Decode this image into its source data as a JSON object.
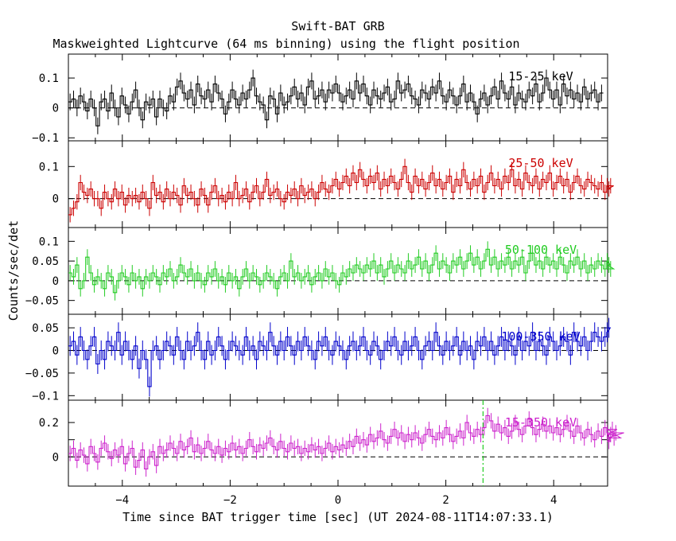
{
  "header": {
    "title": "Swift-BAT GRB",
    "subtitle": "Maskweighted Lightcurve (64 ms binning) using the flight position"
  },
  "axes": {
    "xlabel": "Time since BAT trigger time [sec] (UT 2024-08-11T14:07:33.1)",
    "ylabel": "Counts/sec/det"
  },
  "chart_data": [
    {
      "type": "line",
      "step": true,
      "band": "15-25 keV",
      "color": "#000000",
      "xlim": [
        -5,
        5
      ],
      "ylim": [
        -0.11,
        0.18
      ],
      "yticks": [
        -0.1,
        0,
        0.1
      ],
      "yticklabels": [
        "−0.1",
        "0",
        "0.1"
      ],
      "xticks": [
        -4,
        -2,
        0,
        2,
        4
      ],
      "xticklabels": [
        "−4",
        "−2",
        "0",
        "2",
        "4"
      ],
      "x_start": -5,
      "bin_width": 0.064,
      "values": [
        0.02,
        0.03,
        0.0,
        0.04,
        0.02,
        -0.01,
        0.03,
        0.0,
        -0.06,
        0.02,
        0.03,
        -0.01,
        0.05,
        0.0,
        -0.03,
        0.04,
        0.01,
        -0.02,
        0.02,
        0.06,
        0.0,
        -0.04,
        0.02,
        0.01,
        0.03,
        -0.03,
        0.03,
        0.0,
        -0.01,
        0.04,
        0.02,
        0.07,
        0.09,
        0.05,
        0.03,
        0.06,
        0.01,
        0.08,
        0.04,
        0.03,
        0.06,
        0.02,
        0.08,
        0.05,
        0.03,
        -0.02,
        0.02,
        0.06,
        0.03,
        0.01,
        0.05,
        0.03,
        0.06,
        0.1,
        0.04,
        0.02,
        0.01,
        -0.04,
        0.04,
        0.03,
        -0.02,
        0.05,
        0.01,
        0.02,
        0.04,
        0.07,
        0.03,
        0.05,
        0.01,
        0.07,
        0.09,
        0.03,
        0.04,
        0.06,
        0.02,
        0.06,
        0.05,
        0.08,
        0.05,
        0.02,
        0.04,
        0.06,
        0.03,
        0.09,
        0.05,
        0.08,
        0.04,
        0.01,
        0.06,
        0.04,
        0.03,
        0.05,
        0.07,
        0.02,
        0.03,
        0.09,
        0.05,
        0.06,
        0.08,
        0.04,
        0.03,
        0.01,
        0.06,
        0.05,
        0.03,
        0.07,
        0.05,
        0.09,
        0.04,
        0.02,
        0.06,
        0.04,
        0.01,
        0.04,
        0.08,
        0.02,
        0.05,
        0.02,
        -0.02,
        0.03,
        0.05,
        0.01,
        0.04,
        0.07,
        0.03,
        0.09,
        0.05,
        0.03,
        0.07,
        0.01,
        0.05,
        0.03,
        0.02,
        0.06,
        0.04,
        0.08,
        0.02,
        0.05,
        0.1,
        0.06,
        0.03,
        0.06,
        0.01,
        0.08,
        0.04,
        0.06,
        0.03,
        0.05,
        0.02,
        0.07,
        0.03,
        0.05,
        0.06,
        0.02,
        0.05
      ],
      "errors": 0.028
    },
    {
      "type": "line",
      "step": true,
      "band": "25-50 keV",
      "color": "#cc0000",
      "xlim": [
        -5,
        5
      ],
      "ylim": [
        -0.09,
        0.18
      ],
      "yticks": [
        0,
        0.1
      ],
      "yticklabels": [
        "0",
        "0.1"
      ],
      "xticks": [
        -4,
        -2,
        0,
        2,
        4
      ],
      "xticklabels": [
        "−4",
        "−2",
        "0",
        "2",
        "4"
      ],
      "x_start": -5,
      "bin_width": 0.064,
      "values": [
        -0.05,
        -0.03,
        -0.01,
        0.05,
        0.02,
        0.01,
        0.03,
        0.0,
        0.0,
        -0.03,
        0.02,
        0.0,
        -0.01,
        0.03,
        0.0,
        0.02,
        -0.02,
        0.01,
        0.0,
        0.01,
        -0.01,
        0.02,
        0.0,
        -0.03,
        0.05,
        0.01,
        0.02,
        -0.01,
        0.03,
        0.0,
        0.02,
        0.01,
        -0.02,
        0.04,
        0.01,
        0.02,
        0.0,
        -0.02,
        0.03,
        0.01,
        -0.02,
        0.02,
        0.04,
        0.0,
        0.01,
        -0.01,
        0.02,
        0.0,
        0.05,
        0.0,
        0.01,
        0.03,
        -0.01,
        0.02,
        0.04,
        0.0,
        0.02,
        0.06,
        0.01,
        0.02,
        0.03,
        0.0,
        -0.01,
        0.02,
        0.01,
        0.03,
        0.0,
        0.04,
        0.01,
        0.02,
        0.03,
        0.0,
        0.02,
        0.05,
        0.03,
        0.02,
        0.04,
        0.06,
        0.03,
        0.05,
        0.07,
        0.04,
        0.08,
        0.05,
        0.09,
        0.06,
        0.04,
        0.07,
        0.05,
        0.08,
        0.03,
        0.06,
        0.04,
        0.07,
        0.05,
        0.03,
        0.06,
        0.1,
        0.05,
        0.02,
        0.07,
        0.04,
        0.06,
        0.03,
        0.05,
        0.08,
        0.04,
        0.06,
        0.03,
        0.05,
        0.07,
        0.02,
        0.06,
        0.04,
        0.09,
        0.05,
        0.03,
        0.06,
        0.04,
        0.07,
        0.02,
        0.05,
        0.08,
        0.04,
        0.06,
        0.03,
        0.07,
        0.05,
        0.09,
        0.04,
        0.06,
        0.03,
        0.08,
        0.05,
        0.04,
        0.07,
        0.03,
        0.06,
        0.05,
        0.08,
        0.03,
        0.05,
        0.07,
        0.04,
        0.06,
        0.02,
        0.05,
        0.07,
        0.04,
        0.03,
        0.06,
        0.05,
        0.04,
        0.03,
        0.05,
        0.02,
        0.04,
        0.03,
        0.04
      ],
      "errors": 0.024
    },
    {
      "type": "line",
      "step": true,
      "band": "50-100 keV",
      "color": "#22cc22",
      "xlim": [
        -5,
        5
      ],
      "ylim": [
        -0.085,
        0.135
      ],
      "yticks": [
        -0.05,
        0,
        0.05,
        0.1
      ],
      "yticklabels": [
        "−0.05",
        "0",
        "0.05",
        "0.1"
      ],
      "xticks": [
        -4,
        -2,
        0,
        2,
        4
      ],
      "xticklabels": [
        "−4",
        "−2",
        "0",
        "2",
        "4"
      ],
      "x_start": -5,
      "bin_width": 0.064,
      "values": [
        0.02,
        0.01,
        0.04,
        -0.02,
        0.0,
        0.06,
        0.02,
        -0.01,
        0.01,
        0.0,
        -0.02,
        0.02,
        0.01,
        -0.03,
        0.0,
        0.02,
        0.01,
        -0.01,
        0.02,
        0.0,
        0.01,
        -0.02,
        0.01,
        0.0,
        0.02,
        0.01,
        -0.01,
        0.02,
        0.01,
        0.03,
        0.0,
        0.01,
        0.04,
        0.02,
        0.01,
        0.03,
        0.0,
        0.02,
        0.0,
        -0.01,
        0.02,
        0.01,
        0.03,
        0.0,
        0.01,
        -0.01,
        0.02,
        0.0,
        0.01,
        -0.02,
        0.01,
        0.03,
        0.0,
        0.02,
        0.01,
        -0.01,
        0.0,
        0.02,
        0.01,
        0.0,
        -0.02,
        0.01,
        0.02,
        0.0,
        0.05,
        0.01,
        0.02,
        0.0,
        0.01,
        0.02,
        -0.01,
        0.01,
        0.02,
        0.0,
        0.03,
        0.01,
        0.02,
        0.0,
        -0.01,
        0.02,
        0.01,
        0.03,
        0.02,
        0.04,
        0.03,
        0.02,
        0.04,
        0.03,
        0.05,
        0.02,
        0.04,
        0.01,
        0.03,
        0.05,
        0.02,
        0.04,
        0.03,
        0.02,
        0.05,
        0.03,
        0.04,
        0.06,
        0.03,
        0.05,
        0.02,
        0.04,
        0.07,
        0.03,
        0.05,
        0.04,
        0.02,
        0.05,
        0.04,
        0.06,
        0.03,
        0.05,
        0.07,
        0.04,
        0.06,
        0.03,
        0.05,
        0.08,
        0.04,
        0.06,
        0.03,
        0.05,
        0.04,
        0.06,
        0.03,
        0.05,
        0.04,
        0.06,
        0.02,
        0.05,
        0.07,
        0.04,
        0.05,
        0.03,
        0.06,
        0.04,
        0.05,
        0.03,
        0.06,
        0.04,
        0.02,
        0.05,
        0.04,
        0.06,
        0.03,
        0.05,
        0.02,
        0.04,
        0.03,
        0.05,
        0.04,
        0.03,
        0.05,
        0.04,
        0.03
      ],
      "errors": 0.02
    },
    {
      "type": "line",
      "step": true,
      "band": "100-350 keV",
      "color": "#0000cc",
      "xlim": [
        -5,
        5
      ],
      "ylim": [
        -0.11,
        0.08
      ],
      "yticks": [
        -0.1,
        -0.05,
        0,
        0.05
      ],
      "yticklabels": [
        "−0.1",
        "−0.05",
        "0",
        "0.05"
      ],
      "xticks": [
        -4,
        -2,
        0,
        2,
        4
      ],
      "xticklabels": [
        "−4",
        "−2",
        "0",
        "2",
        "4"
      ],
      "x_start": -5,
      "bin_width": 0.064,
      "values": [
        0.01,
        0.02,
        -0.01,
        0.03,
        0.0,
        -0.02,
        0.01,
        0.03,
        -0.03,
        0.0,
        -0.02,
        0.02,
        0.01,
        0.0,
        0.04,
        -0.01,
        0.02,
        0.0,
        -0.02,
        0.01,
        -0.04,
        0.0,
        -0.02,
        -0.08,
        0.0,
        0.01,
        -0.02,
        0.0,
        0.02,
        0.01,
        -0.01,
        0.03,
        0.0,
        -0.02,
        0.02,
        0.0,
        0.01,
        0.04,
        0.0,
        -0.02,
        0.02,
        -0.01,
        0.0,
        0.03,
        0.01,
        -0.02,
        0.0,
        0.02,
        0.01,
        0.0,
        -0.01,
        0.03,
        0.0,
        0.01,
        -0.02,
        0.02,
        0.01,
        0.0,
        0.04,
        0.01,
        -0.01,
        0.02,
        0.0,
        0.03,
        0.01,
        -0.01,
        0.02,
        0.0,
        0.03,
        0.01,
        0.0,
        -0.02,
        0.02,
        0.01,
        0.03,
        0.0,
        -0.01,
        0.02,
        0.01,
        0.0,
        -0.02,
        0.01,
        0.02,
        0.0,
        0.01,
        0.03,
        0.0,
        -0.01,
        0.02,
        0.01,
        -0.02,
        0.0,
        0.02,
        0.01,
        0.03,
        0.0,
        -0.01,
        0.02,
        0.0,
        0.01,
        0.03,
        0.0,
        -0.02,
        0.01,
        0.02,
        0.0,
        0.04,
        0.01,
        -0.01,
        0.02,
        0.0,
        0.01,
        0.03,
        -0.01,
        0.02,
        0.0,
        0.01,
        -0.02,
        0.02,
        0.01,
        0.03,
        0.0,
        0.02,
        -0.01,
        0.01,
        0.03,
        0.0,
        0.02,
        0.01,
        -0.01,
        0.03,
        0.0,
        0.02,
        0.01,
        0.04,
        0.0,
        0.02,
        0.01,
        -0.01,
        0.03,
        0.02,
        0.0,
        0.01,
        0.03,
        0.02,
        -0.01,
        0.04,
        0.02,
        0.01,
        0.03,
        0.0,
        0.02,
        0.04,
        0.03,
        0.02,
        0.03,
        0.04,
        0.05
      ],
      "errors": 0.022
    },
    {
      "type": "line",
      "step": true,
      "band": "15-350 keV",
      "color": "#cc22cc",
      "xlim": [
        -5,
        5
      ],
      "ylim": [
        -0.17,
        0.33
      ],
      "yticks": [
        0,
        0.1,
        0.2
      ],
      "yticklabels": [
        "0",
        "",
        "0.2"
      ],
      "xticks": [
        -4,
        -2,
        0,
        2,
        4
      ],
      "xticklabels": [
        "−4",
        "−2",
        "0",
        "2",
        "4"
      ],
      "x_start": -5,
      "bin_width": 0.064,
      "values": [
        0.02,
        0.05,
        -0.02,
        0.04,
        0.01,
        -0.04,
        0.06,
        0.02,
        -0.03,
        0.05,
        0.08,
        0.03,
        -0.01,
        0.04,
        0.01,
        0.06,
        -0.04,
        0.02,
        0.05,
        -0.06,
        -0.02,
        0.04,
        -0.07,
        0.0,
        0.03,
        -0.05,
        0.06,
        0.02,
        0.04,
        0.08,
        0.05,
        0.02,
        0.09,
        0.04,
        0.06,
        0.11,
        0.03,
        0.07,
        0.02,
        0.05,
        0.09,
        0.04,
        0.02,
        0.06,
        0.01,
        0.05,
        0.03,
        0.08,
        0.04,
        0.06,
        0.02,
        0.05,
        0.1,
        0.06,
        0.03,
        0.07,
        0.05,
        0.08,
        0.11,
        0.06,
        0.04,
        0.09,
        0.05,
        0.03,
        0.08,
        0.05,
        0.06,
        0.02,
        0.05,
        0.03,
        0.07,
        0.04,
        0.06,
        0.02,
        0.05,
        0.08,
        0.03,
        0.06,
        0.04,
        0.07,
        0.05,
        0.09,
        0.06,
        0.12,
        0.08,
        0.1,
        0.07,
        0.13,
        0.09,
        0.11,
        0.15,
        0.1,
        0.08,
        0.12,
        0.16,
        0.11,
        0.14,
        0.09,
        0.13,
        0.1,
        0.14,
        0.11,
        0.08,
        0.13,
        0.16,
        0.12,
        0.1,
        0.14,
        0.11,
        0.17,
        0.13,
        0.09,
        0.12,
        0.15,
        0.11,
        0.2,
        0.14,
        0.12,
        0.16,
        0.13,
        0.17,
        0.24,
        0.21,
        0.15,
        0.19,
        0.14,
        0.17,
        0.12,
        0.15,
        0.2,
        0.16,
        0.13,
        0.18,
        0.22,
        0.17,
        0.13,
        0.16,
        0.19,
        0.15,
        0.18,
        0.14,
        0.17,
        0.13,
        0.16,
        0.2,
        0.15,
        0.12,
        0.18,
        0.14,
        0.11,
        0.16,
        0.13,
        0.1,
        0.15,
        0.12,
        0.17,
        0.14,
        0.09,
        0.13,
        0.16,
        0.11,
        0.14
      ],
      "errors": 0.045,
      "marker_x": 2.69,
      "marker_color": "#22cc22"
    }
  ]
}
